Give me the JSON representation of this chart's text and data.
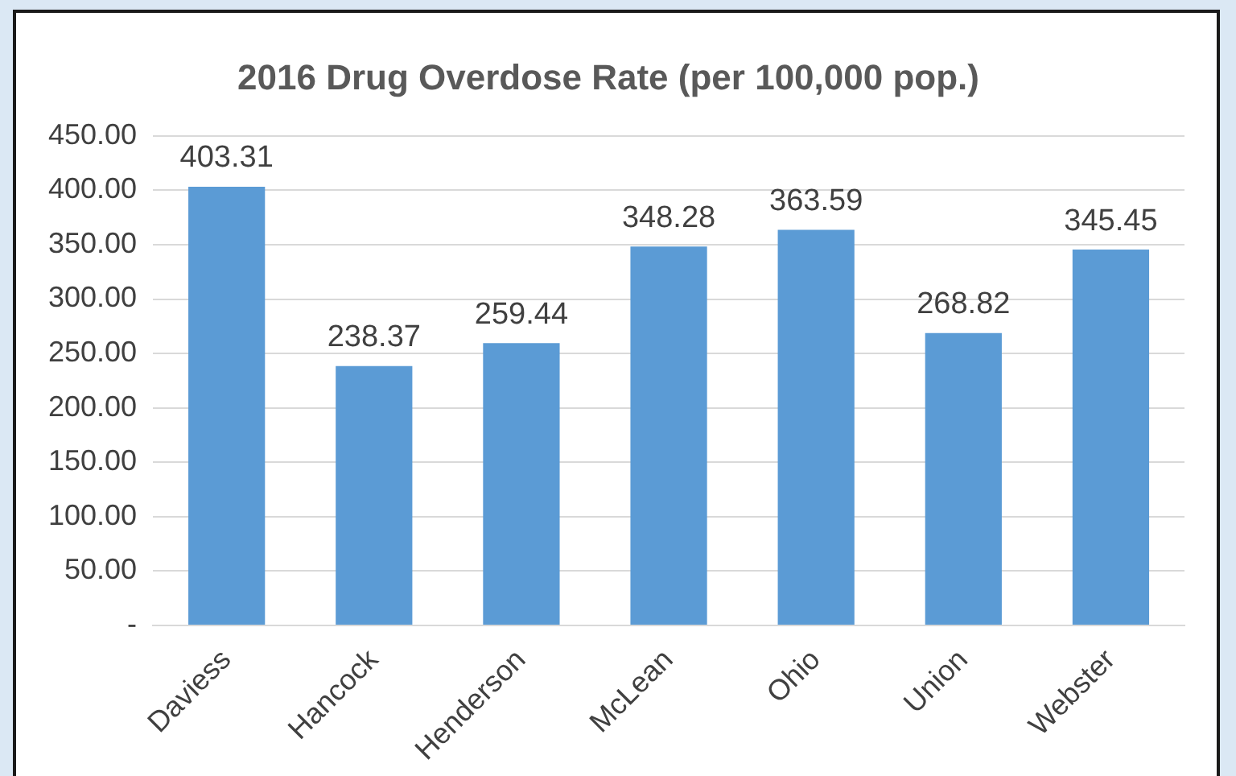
{
  "chart_data": {
    "type": "bar",
    "title": "2016 Drug Overdose Rate (per 100,000 pop.)",
    "categories": [
      "Daviess",
      "Hancock",
      "Henderson",
      "McLean",
      "Ohio",
      "Union",
      "Webster"
    ],
    "values": [
      403.31,
      238.37,
      259.44,
      348.28,
      363.59,
      268.82,
      345.45
    ],
    "color": "#5b9bd5",
    "ylim": [
      0,
      450
    ],
    "yticks": [
      {
        "value": 0,
        "label": "-"
      },
      {
        "value": 50,
        "label": "50.00"
      },
      {
        "value": 100,
        "label": "100.00"
      },
      {
        "value": 150,
        "label": "150.00"
      },
      {
        "value": 200,
        "label": "200.00"
      },
      {
        "value": 250,
        "label": "250.00"
      },
      {
        "value": 300,
        "label": "300.00"
      },
      {
        "value": 350,
        "label": "350.00"
      },
      {
        "value": 400,
        "label": "400.00"
      },
      {
        "value": 450,
        "label": "450.00"
      }
    ],
    "grid": "y",
    "data_labels": true
  }
}
